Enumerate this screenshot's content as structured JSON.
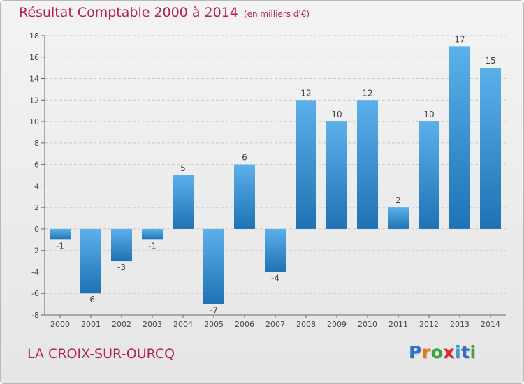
{
  "header": {
    "title": "Résultat Comptable 2000 à 2014",
    "subtitle": "(en milliers d'€)"
  },
  "footer": {
    "place": "LA CROIX-SUR-OURCQ",
    "logo": {
      "letters": [
        "P",
        "r",
        "o",
        "x",
        "i",
        "t",
        "i"
      ],
      "colors": [
        "#2f6fc6",
        "#e07a10",
        "#3aa53a",
        "#d42a2a",
        "#2f9ad6",
        "#2f6fc6",
        "#3aa53a"
      ]
    }
  },
  "colors": {
    "bar_top": "#5cb0ea",
    "bar_bottom": "#1f72b4",
    "text": "#444444",
    "grid": "#c9c9c9"
  },
  "chart_data": {
    "type": "bar",
    "title": "Résultat Comptable 2000 à 2014",
    "xlabel": "",
    "ylabel": "",
    "ylim": [
      -8,
      18
    ],
    "yticks": [
      -8,
      -6,
      -4,
      -2,
      0,
      2,
      4,
      6,
      8,
      10,
      12,
      14,
      16,
      18
    ],
    "grid": "horizontal dashed",
    "categories": [
      "2000",
      "2001",
      "2002",
      "2003",
      "2004",
      "2005",
      "2006",
      "2007",
      "2008",
      "2009",
      "2010",
      "2011",
      "2012",
      "2013",
      "2014"
    ],
    "values": [
      -1,
      -6,
      -3,
      -1,
      5,
      -7,
      6,
      -4,
      12,
      10,
      12,
      2,
      10,
      17,
      15
    ]
  }
}
